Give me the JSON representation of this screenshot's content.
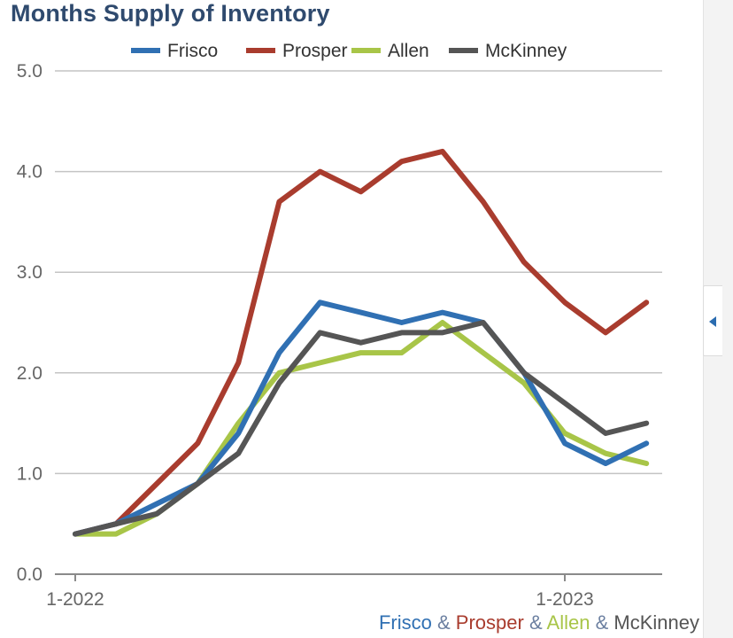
{
  "chart_data": {
    "type": "line",
    "title": "Months Supply of Inventory",
    "x": [
      "1-2022",
      "2-2022",
      "3-2022",
      "4-2022",
      "5-2022",
      "6-2022",
      "7-2022",
      "8-2022",
      "9-2022",
      "10-2022",
      "11-2022",
      "12-2022",
      "1-2023",
      "2-2023",
      "3-2023"
    ],
    "x_tick_labels": [
      "1-2022",
      "1-2023"
    ],
    "y_ticks": [
      "0.0",
      "1.0",
      "2.0",
      "3.0",
      "4.0",
      "5.0"
    ],
    "ylim": [
      0,
      5
    ],
    "grid": true,
    "legend_position": "top",
    "series": [
      {
        "name": "Frisco",
        "color": "#3070b3",
        "values": [
          0.4,
          0.5,
          0.7,
          0.9,
          1.4,
          2.2,
          2.7,
          2.6,
          2.5,
          2.6,
          2.5,
          2.0,
          1.3,
          1.1,
          1.3
        ]
      },
      {
        "name": "Prosper",
        "color": "#a93c2e",
        "values": [
          0.4,
          0.5,
          0.9,
          1.3,
          2.1,
          3.7,
          4.0,
          3.8,
          4.1,
          4.2,
          3.7,
          3.1,
          2.7,
          2.4,
          2.7
        ]
      },
      {
        "name": "Allen",
        "color": "#a8c548",
        "values": [
          0.4,
          0.4,
          0.6,
          0.9,
          1.5,
          2.0,
          2.1,
          2.2,
          2.2,
          2.5,
          2.2,
          1.9,
          1.4,
          1.2,
          1.1
        ]
      },
      {
        "name": "McKinney",
        "color": "#555555",
        "values": [
          0.4,
          0.5,
          0.6,
          0.9,
          1.2,
          1.9,
          2.4,
          2.3,
          2.4,
          2.4,
          2.5,
          2.0,
          1.7,
          1.4,
          1.5
        ]
      }
    ]
  },
  "caption": {
    "parts": [
      {
        "text": "Frisco",
        "color": "#3070b3"
      },
      {
        "text": "&",
        "color": "#6b7fa0"
      },
      {
        "text": "Prosper",
        "color": "#a93c2e"
      },
      {
        "text": "&",
        "color": "#6b7fa0"
      },
      {
        "text": "Allen",
        "color": "#a8c548"
      },
      {
        "text": "&",
        "color": "#6b7fa0"
      },
      {
        "text": "McKinney",
        "color": "#555555"
      }
    ]
  }
}
